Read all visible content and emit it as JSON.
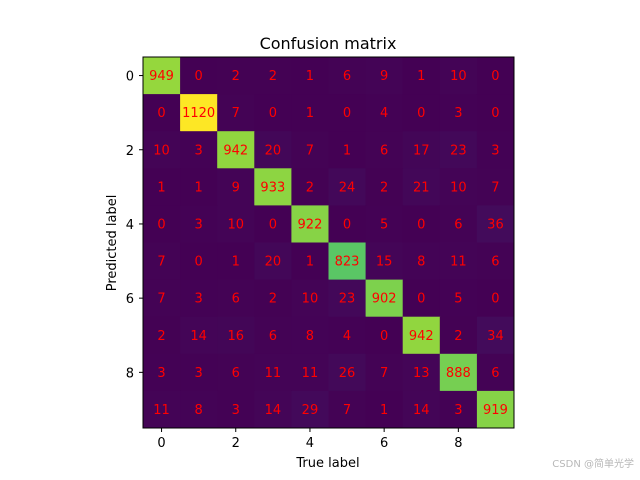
{
  "chart_data": {
    "type": "heatmap",
    "title": "Confusion matrix",
    "xlabel": "True label",
    "ylabel": "Predicted label",
    "x_ticks": [
      0,
      2,
      4,
      6,
      8
    ],
    "y_ticks": [
      0,
      2,
      4,
      6,
      8
    ],
    "colormap": "viridis",
    "value_range": [
      0,
      1120
    ],
    "annotation_color": "#ff0000",
    "grid": false,
    "matrix": [
      [
        949,
        0,
        2,
        2,
        1,
        6,
        9,
        1,
        10,
        0
      ],
      [
        0,
        1120,
        7,
        0,
        1,
        0,
        4,
        0,
        3,
        0
      ],
      [
        10,
        3,
        942,
        20,
        7,
        1,
        6,
        17,
        23,
        3
      ],
      [
        1,
        1,
        9,
        933,
        2,
        24,
        2,
        21,
        10,
        7
      ],
      [
        0,
        3,
        10,
        0,
        922,
        0,
        5,
        0,
        6,
        36
      ],
      [
        7,
        0,
        1,
        20,
        1,
        823,
        15,
        8,
        11,
        6
      ],
      [
        7,
        3,
        6,
        2,
        10,
        23,
        902,
        0,
        5,
        0
      ],
      [
        2,
        14,
        16,
        6,
        8,
        4,
        0,
        942,
        2,
        34
      ],
      [
        3,
        3,
        6,
        11,
        11,
        26,
        7,
        13,
        888,
        6
      ],
      [
        11,
        8,
        3,
        14,
        29,
        7,
        1,
        14,
        3,
        919
      ]
    ]
  },
  "watermark": "CSDN @简单光学"
}
